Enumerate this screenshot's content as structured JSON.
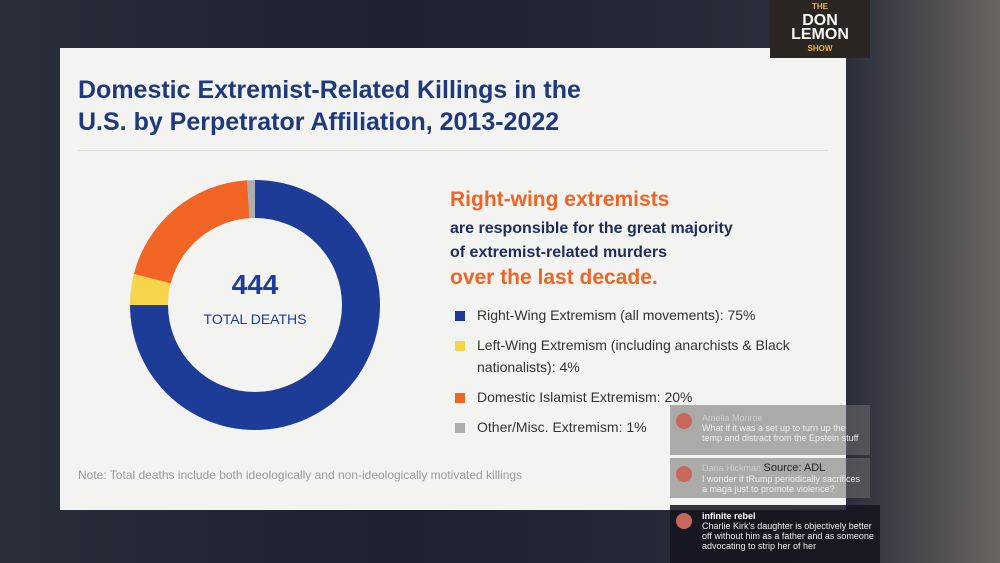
{
  "chart_data": {
    "type": "pie",
    "donut": true,
    "title": "Domestic Extremist-Related Killings in the U.S. by Perpetrator Affiliation, 2013-2022",
    "center_value": "444",
    "center_label": "TOTAL DEATHS",
    "categories": [
      "Right-Wing Extremism (all movements): 75%",
      "Left-Wing Extremism (including anarchists & Black nationalists): 4%",
      "Domestic Islamist Extremism: 20%",
      "Other/Misc. Extremism: 1%"
    ],
    "values": [
      75,
      4,
      20,
      1
    ],
    "colors": [
      "#1d3c98",
      "#f5d64a",
      "#f26424",
      "#aeaeae"
    ]
  },
  "headline": [
    {
      "text": "Right-wing extremists",
      "color": "#f26424"
    },
    {
      "text": "are responsible for the great majority",
      "color": "#1f2d5a"
    },
    {
      "text": "of extremist-related murders",
      "color": "#1f2d5a"
    },
    {
      "text": "over the last decade.",
      "color": "#f26424"
    }
  ],
  "note": "Note: Total deaths include both ideologically and non-ideologically motivated killings",
  "source": "Source: ADL",
  "logo": [
    "THE",
    "DON",
    "LEMON",
    "SHOW"
  ],
  "chat": [
    {
      "name": "Amelia Monroe",
      "text": "What if it was a set up to turn up the temp and distract from the Epstein stuff"
    },
    {
      "name": "Dana Hickman",
      "text": "I wonder if tRump periodically sacrifices a maga just to promote violence?"
    },
    {
      "name": "infinite rebel",
      "text": "Charlie Kirk's daughter is objectively better off without him as a father and as someone advocating to strip her of her"
    }
  ]
}
